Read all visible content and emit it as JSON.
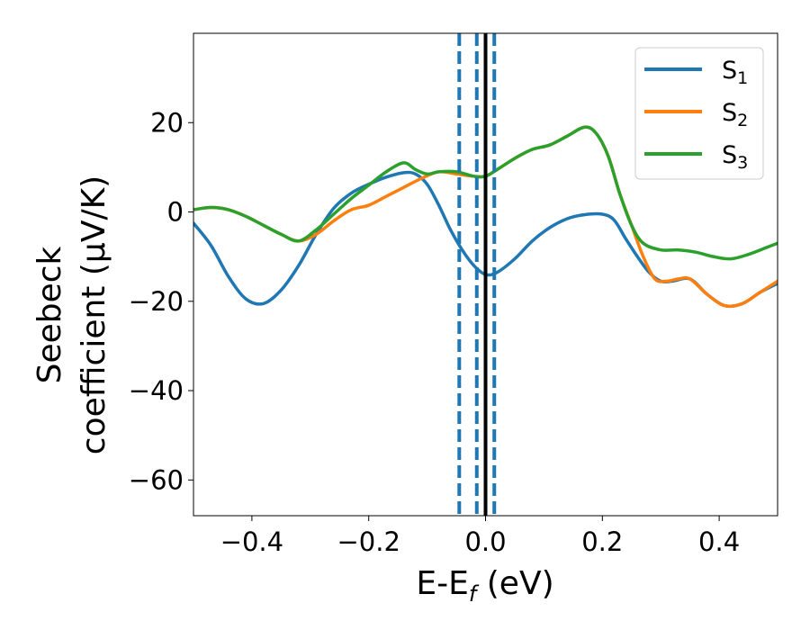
{
  "chart_data": {
    "type": "line",
    "xlabel": {
      "main": "E-E",
      "sub": "f",
      "suffix": " (eV)"
    },
    "ylabel": {
      "line1": "Seebeck",
      "line2": "coefficient  (μV/K)"
    },
    "xlim": [
      -0.5,
      0.5
    ],
    "ylim": [
      -68,
      40
    ],
    "xticks": [
      -0.4,
      -0.2,
      0.0,
      0.2,
      0.4
    ],
    "xtick_labels": [
      "−0.4",
      "−0.2",
      "0.0",
      "0.2",
      "0.4"
    ],
    "yticks": [
      -60,
      -40,
      -20,
      0,
      20
    ],
    "ytick_labels": [
      "−60",
      "−40",
      "−20",
      "0",
      "20"
    ],
    "legend_position": "top-right",
    "vlines": [
      {
        "x": 0.0,
        "style": "solid",
        "color": "#000000"
      },
      {
        "x": -0.045,
        "style": "dashed",
        "color": "#1f77b4"
      },
      {
        "x": -0.015,
        "style": "dashed",
        "color": "#1f77b4"
      },
      {
        "x": 0.015,
        "style": "dashed",
        "color": "#1f77b4"
      }
    ],
    "series": [
      {
        "name": "S",
        "sub": "1",
        "color": "#1f77b4",
        "x": [
          -0.5,
          -0.47,
          -0.44,
          -0.41,
          -0.38,
          -0.35,
          -0.32,
          -0.29,
          -0.26,
          -0.23,
          -0.2,
          -0.17,
          -0.14,
          -0.12,
          -0.1,
          -0.08,
          -0.06,
          -0.04,
          -0.02,
          0.0,
          0.02,
          0.05,
          0.08,
          0.11,
          0.14,
          0.17,
          0.2,
          0.22,
          0.24,
          0.26,
          0.28,
          0.3,
          0.32,
          0.35,
          0.38,
          0.41,
          0.44,
          0.47,
          0.5
        ],
        "y": [
          -2.5,
          -7.5,
          -14.5,
          -19.5,
          -20.5,
          -17.5,
          -12,
          -5,
          0.8,
          4.2,
          6.2,
          7.8,
          8.8,
          8.5,
          6.2,
          1.5,
          -4,
          -8.5,
          -12,
          -14,
          -13.5,
          -10.5,
          -6.5,
          -3.5,
          -1.5,
          -0.6,
          -0.5,
          -1.8,
          -6,
          -10,
          -13.5,
          -15.5,
          -15.5,
          -15,
          -18.5,
          -21,
          -20.5,
          -18,
          -16
        ]
      },
      {
        "name": "S",
        "sub": "2",
        "color": "#ff7f0e",
        "x": [
          -0.5,
          -0.47,
          -0.44,
          -0.41,
          -0.38,
          -0.35,
          -0.32,
          -0.29,
          -0.26,
          -0.23,
          -0.2,
          -0.17,
          -0.14,
          -0.11,
          -0.08,
          -0.05,
          -0.02,
          0.0,
          0.02,
          0.05,
          0.08,
          0.11,
          0.14,
          0.17,
          0.19,
          0.21,
          0.23,
          0.25,
          0.27,
          0.29,
          0.31,
          0.33,
          0.35,
          0.38,
          0.41,
          0.44,
          0.47,
          0.5
        ],
        "y": [
          0.5,
          1,
          0.5,
          -1,
          -3,
          -5,
          -6.5,
          -5,
          -2,
          0.5,
          1.5,
          3.5,
          5.5,
          7.5,
          9,
          8.5,
          8,
          8,
          9.5,
          12,
          14,
          15,
          17,
          19,
          17.5,
          12.5,
          4,
          -3,
          -10,
          -15,
          -15.5,
          -15,
          -15,
          -18.5,
          -21,
          -20.5,
          -18,
          -15.5
        ]
      },
      {
        "name": "S",
        "sub": "3",
        "color": "#2ca02c",
        "x": [
          -0.5,
          -0.47,
          -0.44,
          -0.41,
          -0.38,
          -0.35,
          -0.32,
          -0.29,
          -0.26,
          -0.23,
          -0.2,
          -0.17,
          -0.14,
          -0.12,
          -0.1,
          -0.08,
          -0.05,
          -0.02,
          0.0,
          0.02,
          0.05,
          0.08,
          0.11,
          0.14,
          0.17,
          0.19,
          0.21,
          0.23,
          0.25,
          0.27,
          0.3,
          0.33,
          0.36,
          0.39,
          0.42,
          0.45,
          0.48,
          0.5
        ],
        "y": [
          0.5,
          1,
          0.5,
          -1,
          -3,
          -5,
          -6.5,
          -4,
          -0.5,
          3,
          6,
          9,
          11,
          9.5,
          8.5,
          9,
          9,
          8,
          8,
          9.5,
          12,
          14,
          15,
          17,
          19,
          17.5,
          12.5,
          4,
          -3,
          -7,
          -8.5,
          -8.5,
          -9,
          -10,
          -10.5,
          -9.5,
          -8,
          -7
        ]
      }
    ]
  }
}
